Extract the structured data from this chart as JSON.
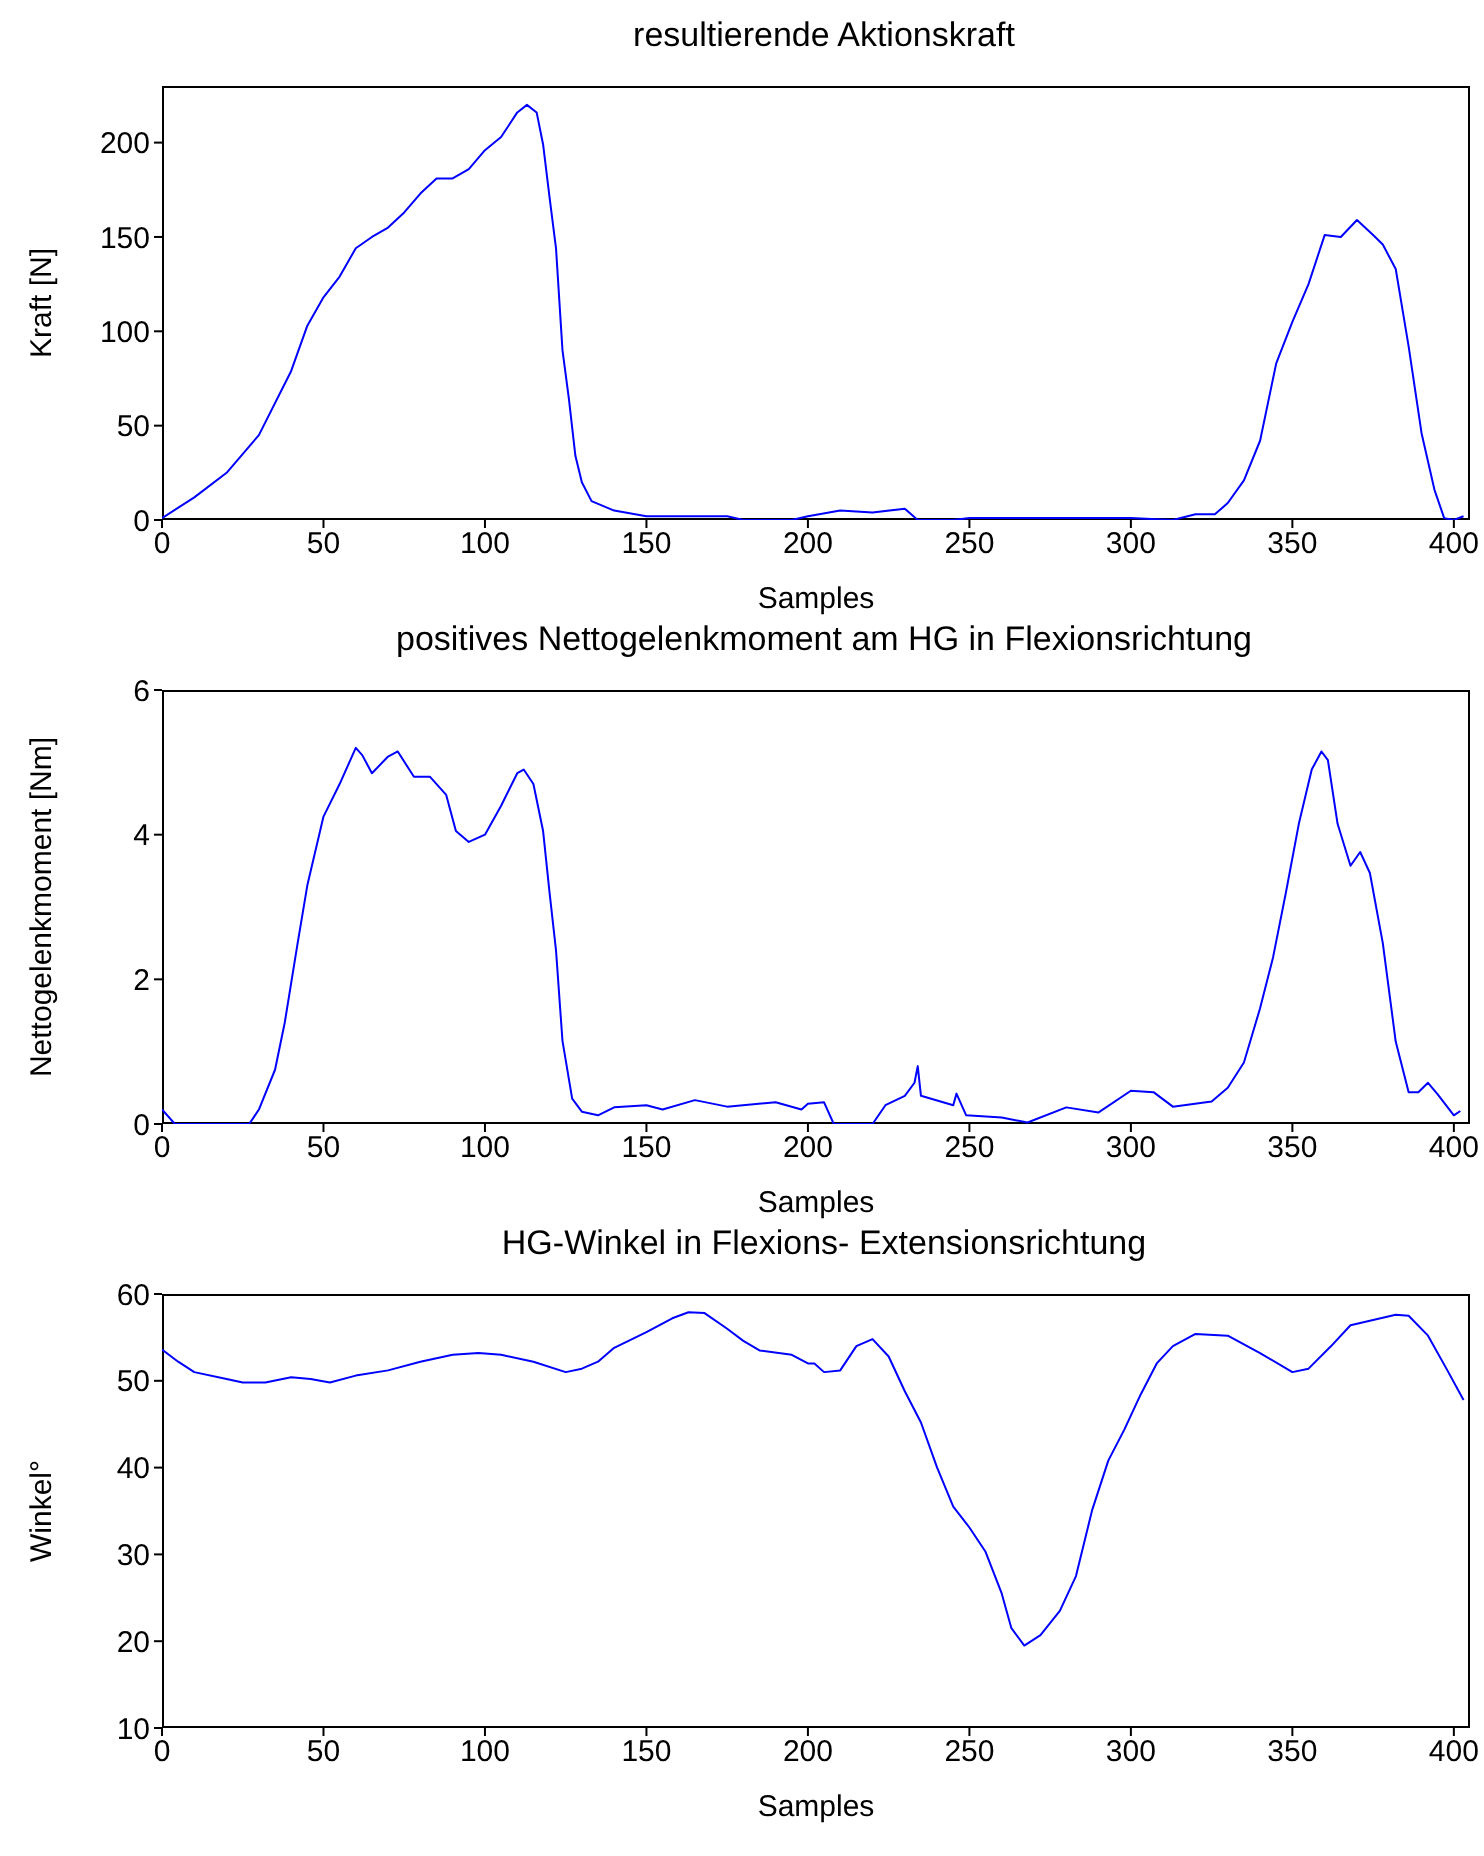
{
  "chart_data": [
    {
      "type": "line",
      "title": "resultierende Aktionskraft",
      "xlabel": "Samples",
      "ylabel": "Kraft [N]",
      "xlim": [
        0,
        405
      ],
      "xticks": [
        0,
        50,
        100,
        150,
        200,
        250,
        300,
        350,
        400
      ],
      "ylim": [
        0,
        230
      ],
      "yticks": [
        0,
        50,
        100,
        150,
        200
      ],
      "x": [
        0,
        10,
        20,
        30,
        40,
        45,
        50,
        55,
        60,
        65,
        70,
        75,
        80,
        85,
        90,
        95,
        100,
        105,
        110,
        113,
        116,
        118,
        120,
        122,
        124,
        126,
        128,
        130,
        133,
        140,
        150,
        175,
        180,
        195,
        200,
        210,
        220,
        230,
        234,
        245,
        250,
        300,
        313,
        320,
        326,
        330,
        335,
        340,
        345,
        350,
        355,
        360,
        365,
        370,
        375,
        378,
        382,
        386,
        390,
        394,
        397,
        400,
        403
      ],
      "series": [
        {
          "color": "#0000ff",
          "values": [
            1,
            12,
            25,
            45,
            79,
            103,
            118,
            129,
            144,
            150,
            155,
            163,
            173,
            181,
            181,
            186,
            196,
            203,
            216,
            220,
            216,
            199,
            171,
            144,
            90,
            64,
            34,
            20,
            10,
            5,
            2,
            2,
            0,
            0,
            2,
            5,
            4,
            6,
            0,
            0,
            1,
            1,
            0,
            3,
            3,
            9,
            21,
            42,
            83,
            105,
            125,
            151,
            150,
            159,
            151,
            146,
            133,
            92,
            46,
            16,
            1,
            0,
            2
          ]
        }
      ]
    },
    {
      "type": "line",
      "title": "positives Nettogelenkmoment am HG in Flexionsrichtung",
      "xlabel": "Samples",
      "ylabel": "Nettogelenkmoment [Nm]",
      "xlim": [
        0,
        405
      ],
      "xticks": [
        0,
        50,
        100,
        150,
        200,
        250,
        300,
        350,
        400
      ],
      "ylim": [
        0,
        6
      ],
      "yticks": [
        0,
        2,
        4,
        6
      ],
      "x": [
        0,
        4,
        20,
        27,
        30,
        35,
        38,
        42,
        45,
        50,
        55,
        58,
        60,
        62,
        65,
        70,
        73,
        78,
        83,
        88,
        91,
        95,
        100,
        105,
        110,
        112,
        115,
        118,
        120,
        122,
        124,
        127,
        130,
        135,
        140,
        150,
        155,
        165,
        175,
        190,
        198,
        200,
        205,
        208,
        220,
        224,
        230,
        233,
        234,
        235,
        245,
        246,
        249,
        260,
        268,
        280,
        290,
        300,
        307,
        313,
        325,
        330,
        335,
        340,
        344,
        348,
        352,
        356,
        359,
        361,
        364,
        368,
        371,
        374,
        378,
        382,
        386,
        389,
        392,
        395,
        400,
        402
      ],
      "series": [
        {
          "color": "#0000ff",
          "values": [
            0.2,
            0,
            0,
            0,
            0.2,
            0.75,
            1.4,
            2.5,
            3.3,
            4.25,
            4.7,
            5.0,
            5.2,
            5.1,
            4.85,
            5.08,
            5.15,
            4.8,
            4.8,
            4.55,
            4.05,
            3.9,
            4.0,
            4.4,
            4.85,
            4.9,
            4.7,
            4.05,
            3.2,
            2.4,
            1.15,
            0.35,
            0.17,
            0.12,
            0.23,
            0.26,
            0.2,
            0.33,
            0.24,
            0.3,
            0.2,
            0.28,
            0.3,
            0,
            0,
            0.26,
            0.39,
            0.57,
            0.8,
            0.39,
            0.26,
            0.42,
            0.12,
            0.09,
            0.02,
            0.23,
            0.16,
            0.46,
            0.44,
            0.24,
            0.31,
            0.5,
            0.85,
            1.6,
            2.3,
            3.2,
            4.15,
            4.9,
            5.15,
            5.03,
            4.15,
            3.57,
            3.76,
            3.47,
            2.5,
            1.14,
            0.44,
            0.44,
            0.57,
            0.41,
            0.12,
            0.18
          ]
        }
      ]
    },
    {
      "type": "line",
      "title": "HG-Winkel in Flexions- Extensionsrichtung",
      "xlabel": "Samples",
      "ylabel": "Winkel°",
      "xlim": [
        0,
        405
      ],
      "xticks": [
        0,
        50,
        100,
        150,
        200,
        250,
        300,
        350,
        400
      ],
      "ylim": [
        10,
        60
      ],
      "yticks": [
        10,
        20,
        30,
        40,
        50,
        60
      ],
      "x": [
        0,
        5,
        10,
        20,
        25,
        32,
        40,
        46,
        52,
        60,
        70,
        80,
        90,
        98,
        105,
        115,
        125,
        130,
        135,
        140,
        150,
        158,
        163,
        168,
        175,
        180,
        185,
        195,
        200,
        202,
        205,
        210,
        215,
        220,
        225,
        230,
        235,
        240,
        245,
        250,
        255,
        260,
        263,
        267,
        272,
        278,
        283,
        288,
        293,
        298,
        303,
        308,
        313,
        320,
        330,
        340,
        350,
        355,
        362,
        368,
        375,
        382,
        386,
        392,
        398,
        403
      ],
      "series": [
        {
          "color": "#0000ff",
          "values": [
            53.6,
            52.2,
            51,
            50.2,
            49.8,
            49.8,
            50.4,
            50.2,
            49.8,
            50.6,
            51.2,
            52.2,
            53,
            53.2,
            53,
            52.2,
            51,
            51.4,
            52.2,
            53.8,
            55.6,
            57.2,
            57.9,
            57.8,
            56,
            54.6,
            53.5,
            53,
            52,
            52,
            51,
            51.2,
            54,
            54.8,
            52.8,
            48.8,
            45.2,
            40,
            35.5,
            33.1,
            30.3,
            25.5,
            21.5,
            19.5,
            20.7,
            23.5,
            27.5,
            35.1,
            40.8,
            44.4,
            48.4,
            52,
            54,
            55.4,
            55.2,
            53.2,
            51,
            51.4,
            54,
            56.4,
            57,
            57.6,
            57.5,
            55.2,
            51.2,
            47.8
          ]
        }
      ]
    }
  ]
}
